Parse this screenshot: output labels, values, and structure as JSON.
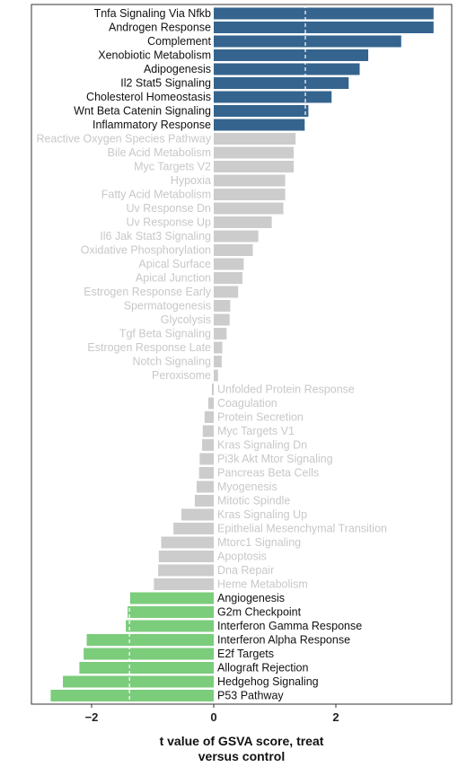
{
  "chart_data": {
    "type": "bar",
    "orientation": "horizontal",
    "xlabel": "t value of GSVA score, treat versus control",
    "xlabel_lines": [
      "t value of GSVA score, treat",
      "versus control"
    ],
    "xlim": [
      -2.95,
      3.75
    ],
    "xticks": [
      -2,
      0,
      2
    ],
    "xtick_labels": [
      "−2",
      "0",
      "2"
    ],
    "threshold_lines": [
      -1.38,
      1.5
    ],
    "grid": false,
    "legend": "none",
    "colors": {
      "up": "#35648f",
      "neutral": "#cccccc",
      "down": "#7bcc7b",
      "label_dark": "#111111",
      "label_light": "#c8c8c8",
      "frame": "#333333"
    },
    "categories": [
      "Tnfa Signaling Via Nfkb",
      "Androgen Response",
      "Complement",
      "Xenobiotic Metabolism",
      "Adipogenesis",
      "Il2 Stat5 Signaling",
      "Cholesterol Homeostasis",
      "Wnt Beta Catenin Signaling",
      "Inflammatory Response",
      "Reactive Oxygen Species Pathway",
      "Bile Acid Metabolism",
      "Myc Targets V2",
      "Hypoxia",
      "Fatty Acid Metabolism",
      "Uv Response Dn",
      "Uv Response Up",
      "Il6 Jak Stat3 Signaling",
      "Oxidative Phosphorylation",
      "Apical Surface",
      "Apical Junction",
      "Estrogen Response Early",
      "Spermatogenesis",
      "Glycolysis",
      "Tgf Beta Signaling",
      "Estrogen Response Late",
      "Notch Signaling",
      "Peroxisome",
      "Unfolded Protein Response",
      "Coagulation",
      "Protein Secretion",
      "Myc Targets V1",
      "Kras Signaling Dn",
      "Pi3k Akt Mtor Signaling",
      "Pancreas Beta Cells",
      "Myogenesis",
      "Mitotic Spindle",
      "Kras Signaling Up",
      "Epithelial Mesenchymal Transition",
      "Mtorc1 Signaling",
      "Apoptosis",
      "Dna Repair",
      "Heme Metabolism",
      "Angiogenesis",
      "G2m Checkpoint",
      "Interferon Gamma Response",
      "Interferon Alpha Response",
      "E2f Targets",
      "Allograft Rejection",
      "Hedgehog Signaling",
      "P53 Pathway"
    ],
    "values": [
      3.6,
      3.6,
      3.07,
      2.53,
      2.39,
      2.21,
      1.93,
      1.55,
      1.49,
      1.34,
      1.31,
      1.31,
      1.17,
      1.17,
      1.14,
      0.95,
      0.73,
      0.64,
      0.49,
      0.47,
      0.4,
      0.27,
      0.26,
      0.21,
      0.14,
      0.13,
      0.07,
      -0.03,
      -0.09,
      -0.15,
      -0.18,
      -0.19,
      -0.23,
      -0.24,
      -0.28,
      -0.31,
      -0.53,
      -0.66,
      -0.86,
      -0.9,
      -0.91,
      -0.98,
      -1.37,
      -1.41,
      -1.44,
      -2.08,
      -2.13,
      -2.2,
      -2.47,
      -2.67
    ],
    "groups": [
      "up",
      "up",
      "up",
      "up",
      "up",
      "up",
      "up",
      "up",
      "up",
      "neutral",
      "neutral",
      "neutral",
      "neutral",
      "neutral",
      "neutral",
      "neutral",
      "neutral",
      "neutral",
      "neutral",
      "neutral",
      "neutral",
      "neutral",
      "neutral",
      "neutral",
      "neutral",
      "neutral",
      "neutral",
      "neutral",
      "neutral",
      "neutral",
      "neutral",
      "neutral",
      "neutral",
      "neutral",
      "neutral",
      "neutral",
      "neutral",
      "neutral",
      "neutral",
      "neutral",
      "neutral",
      "neutral",
      "down",
      "down",
      "down",
      "down",
      "down",
      "down",
      "down",
      "down"
    ]
  }
}
